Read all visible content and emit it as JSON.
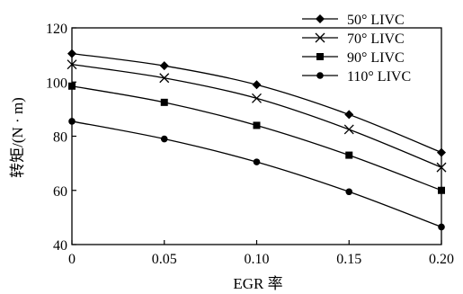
{
  "chart_data": {
    "type": "line",
    "title": "",
    "xlabel": "EGR 率",
    "ylabel": "转矩/(N · m)",
    "x": [
      0,
      0.05,
      0.1,
      0.15,
      0.2
    ],
    "xticklabels": [
      "0",
      "0.05",
      "0.10",
      "0.15",
      "0.20"
    ],
    "xlim": [
      0,
      0.2
    ],
    "ylim": [
      40,
      120
    ],
    "yticks": [
      40,
      60,
      80,
      100,
      120
    ],
    "grid": false,
    "legend_position": "top-right",
    "series": [
      {
        "name": "50° LIVC",
        "marker": "diamond",
        "values": [
          110.5,
          106,
          99,
          88,
          74
        ]
      },
      {
        "name": "70° LIVC",
        "marker": "x",
        "values": [
          106.5,
          101.5,
          94,
          82.5,
          68.5
        ]
      },
      {
        "name": "90° LIVC",
        "marker": "square",
        "values": [
          98.5,
          92.5,
          84,
          73,
          60
        ]
      },
      {
        "name": "110° LIVC",
        "marker": "circle",
        "values": [
          85.5,
          79,
          70.5,
          59.5,
          46.5
        ]
      }
    ]
  }
}
